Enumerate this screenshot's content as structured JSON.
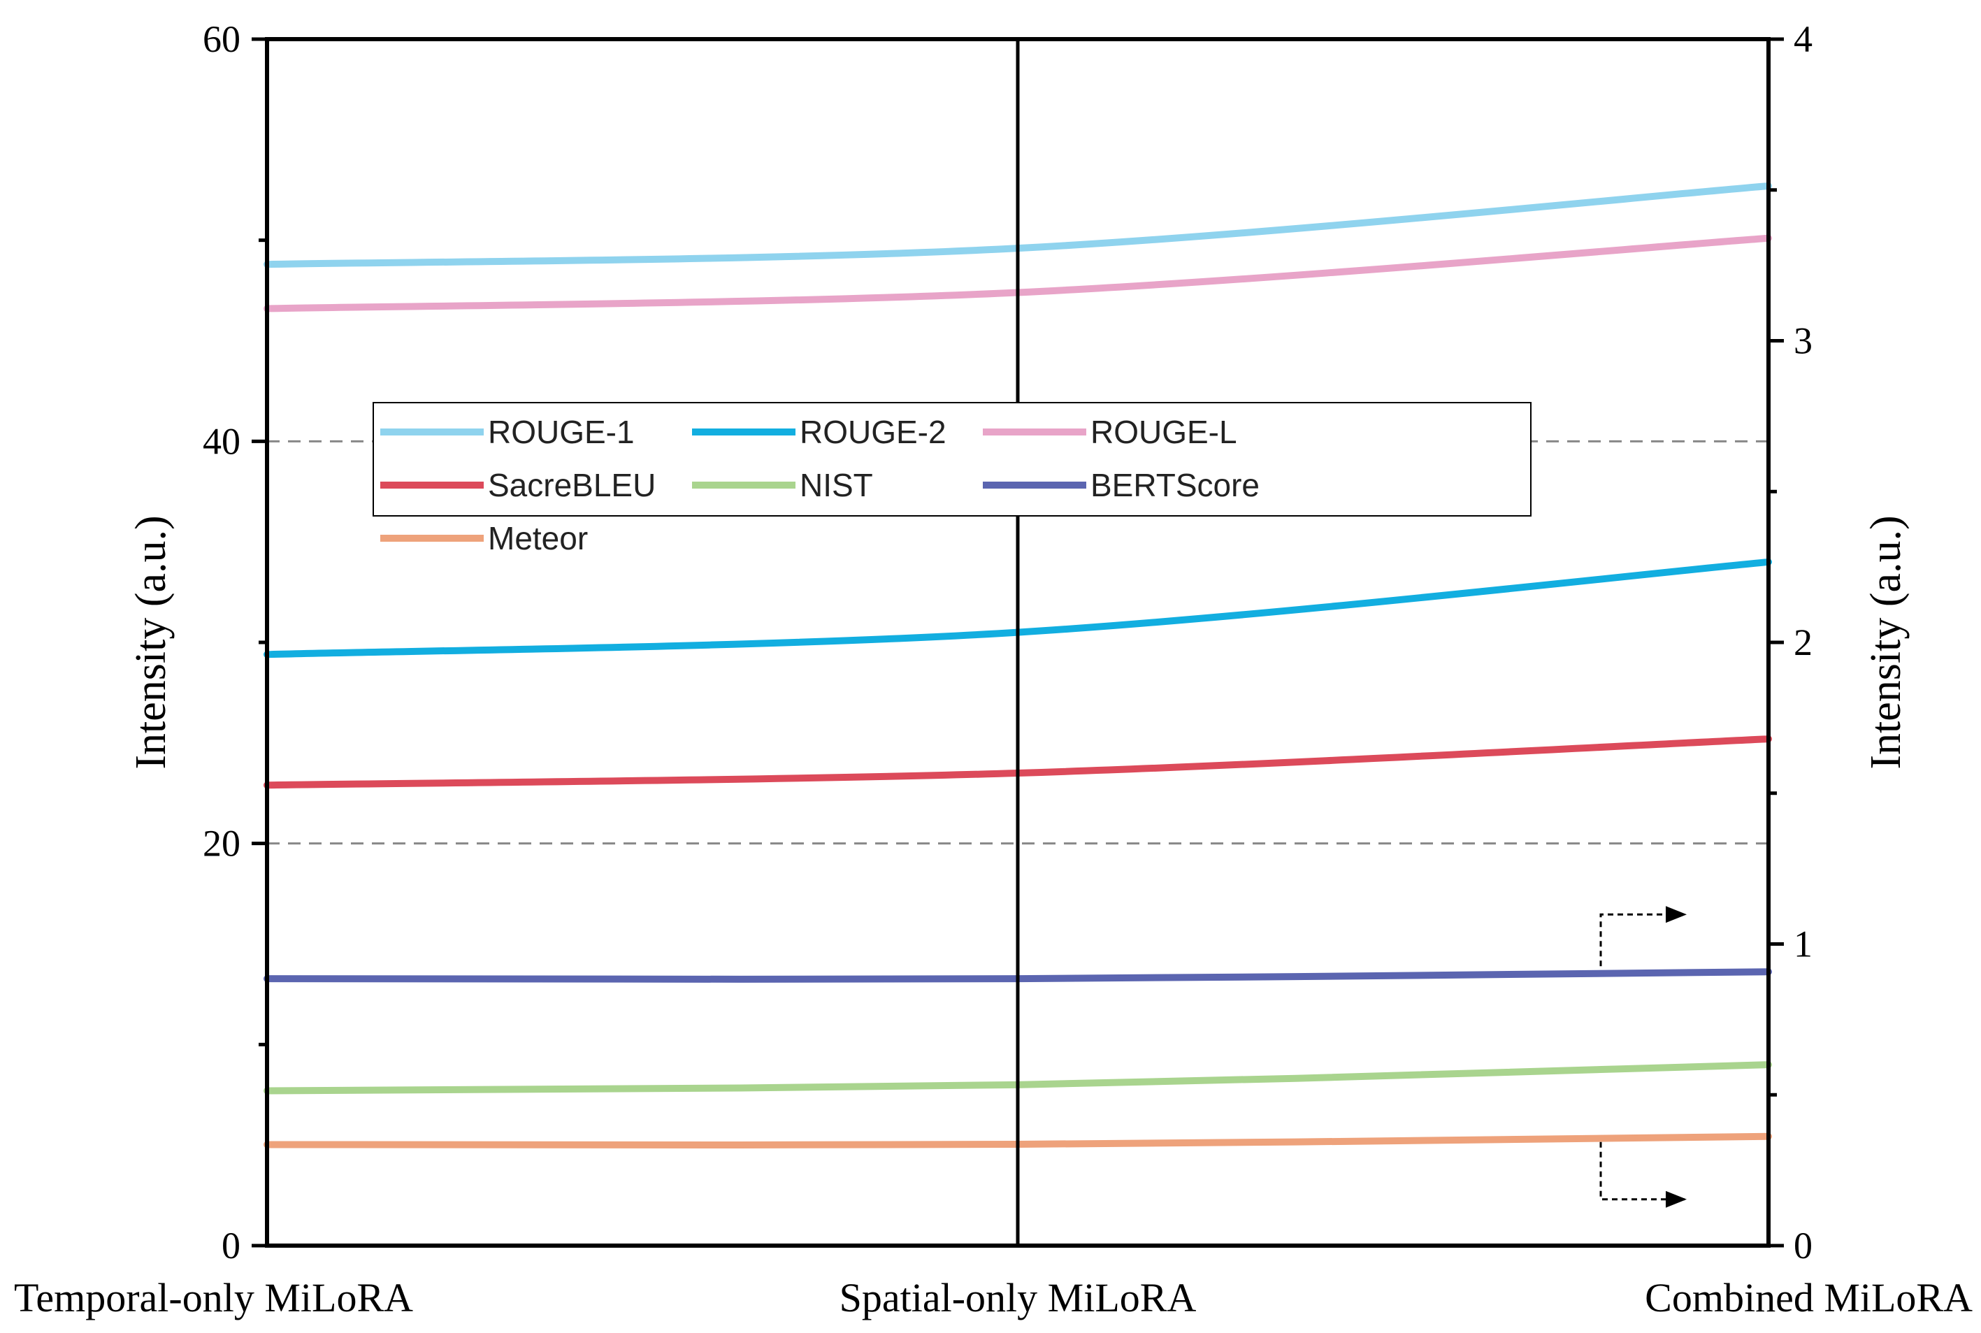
{
  "chart_data": {
    "type": "line",
    "categories": [
      "Temporal-only MiLoRA",
      "Spatial-only MiLoRA",
      "Combined MiLoRA"
    ],
    "ylabel_left": "Intensity (a.u.)",
    "ylabel_right": "Intensity (a.u.)",
    "ylim_left": [
      0,
      60
    ],
    "ylim_right": [
      0,
      4
    ],
    "yticks_left": [
      "0",
      "20",
      "40",
      "60"
    ],
    "yticks_right": [
      "0",
      "1",
      "2",
      "3",
      "4"
    ],
    "gridlines_left": [
      20,
      40
    ],
    "series": [
      {
        "name": "ROUGE-1",
        "color": "#8fd3ee",
        "axis": "left",
        "values": [
          48.8,
          49.6,
          52.7
        ]
      },
      {
        "name": "ROUGE-2",
        "color": "#12aee0",
        "axis": "left",
        "values": [
          29.4,
          30.5,
          34.0
        ]
      },
      {
        "name": "ROUGE-L",
        "color": "#e8a4c8",
        "axis": "left",
        "values": [
          46.6,
          47.4,
          50.1
        ]
      },
      {
        "name": "SacreBLEU",
        "color": "#dc4a5a",
        "axis": "left",
        "values": [
          22.9,
          23.5,
          25.2
        ]
      },
      {
        "name": "NIST",
        "color": "#a9d48e",
        "axis": "left",
        "values": [
          7.7,
          8.0,
          9.0
        ]
      },
      {
        "name": "BERTScore",
        "color": "#5b65b0",
        "axis": "right",
        "values": [
          0.885,
          0.885,
          0.908
        ]
      },
      {
        "name": "Meteor",
        "color": "#eea27b",
        "axis": "right",
        "values": [
          0.335,
          0.336,
          0.362
        ]
      }
    ],
    "right_axis_arrows": [
      "BERTScore",
      "Meteor"
    ],
    "legend": {
      "placement": "upper-left",
      "columns": 3
    }
  }
}
